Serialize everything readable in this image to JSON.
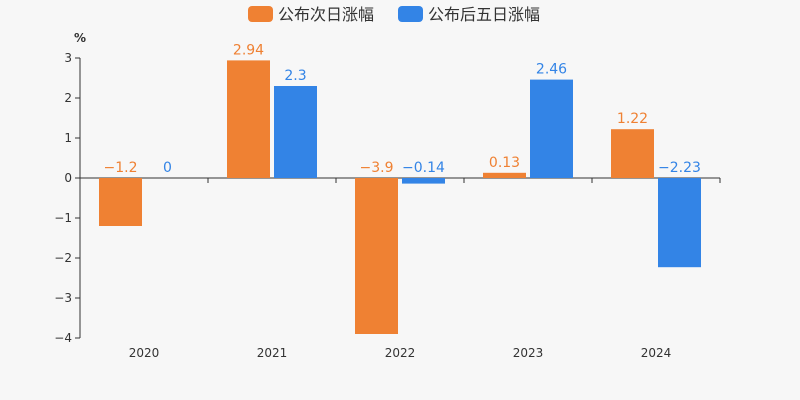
{
  "chart_data": {
    "type": "bar",
    "unit": "%",
    "categories": [
      "2020",
      "2021",
      "2022",
      "2023",
      "2024"
    ],
    "series": [
      {
        "name": "公布次日涨幅",
        "color": "#ef8133",
        "values": [
          -1.2,
          2.94,
          -3.9,
          0.13,
          1.22
        ],
        "labels": [
          "−1.2",
          "2.94",
          "−3.9",
          "0.13",
          "1.22"
        ]
      },
      {
        "name": "公布后五日涨幅",
        "color": "#3384e6",
        "values": [
          0,
          2.3,
          -0.14,
          2.46,
          -2.23
        ],
        "labels": [
          "0",
          "2.3",
          "−0.14",
          "2.46",
          "−2.23"
        ]
      }
    ],
    "ylim": [
      -4,
      3
    ],
    "yticks": [
      "−4",
      "−3",
      "−2",
      "−1",
      "0",
      "1",
      "2",
      "3"
    ],
    "legend_position": "top-center",
    "grid": false
  }
}
